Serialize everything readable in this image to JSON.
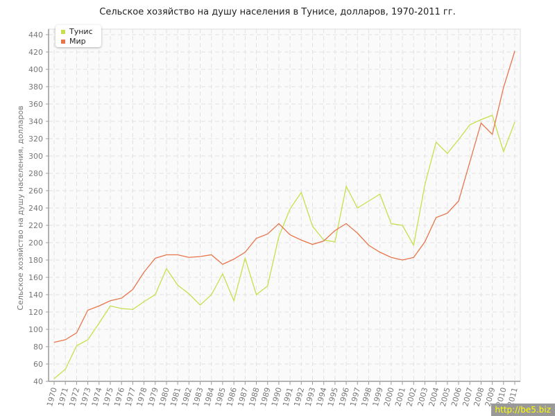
{
  "chart_data": {
    "type": "line",
    "title": "Сельское хозяйство на душу населения в Тунисе, долларов, 1970-2011 гг.",
    "xlabel": "",
    "ylabel": "Сельское хозяйство на душу населения, долларов",
    "ylim": [
      40,
      440
    ],
    "yticks": [
      40,
      60,
      80,
      100,
      120,
      140,
      160,
      180,
      200,
      220,
      240,
      260,
      280,
      300,
      320,
      340,
      360,
      380,
      400,
      420,
      440
    ],
    "x": [
      1970,
      1971,
      1972,
      1973,
      1974,
      1975,
      1976,
      1977,
      1978,
      1979,
      1980,
      1981,
      1982,
      1983,
      1984,
      1985,
      1986,
      1987,
      1988,
      1989,
      1990,
      1991,
      1992,
      1993,
      1994,
      1995,
      1996,
      1997,
      1998,
      1999,
      2000,
      2001,
      2002,
      2003,
      2004,
      2005,
      2006,
      2007,
      2008,
      2009,
      2010,
      2011
    ],
    "grid": true,
    "legend_position": "top-left",
    "series": [
      {
        "name": "Тунис",
        "color": "#c5e04c",
        "values": [
          43,
          54,
          81,
          88,
          107,
          127,
          124,
          123,
          132,
          140,
          170,
          151,
          141,
          128,
          140,
          164,
          133,
          182,
          140,
          150,
          207,
          239,
          258,
          219,
          203,
          201,
          265,
          240,
          248,
          256,
          222,
          220,
          197,
          267,
          316,
          303,
          319,
          336,
          342,
          347,
          305,
          339
        ]
      },
      {
        "name": "Мир",
        "color": "#e8744c",
        "values": [
          85,
          88,
          96,
          122,
          127,
          133,
          136,
          146,
          166,
          182,
          186,
          186,
          183,
          184,
          186,
          175,
          181,
          189,
          205,
          210,
          222,
          209,
          203,
          198,
          202,
          214,
          222,
          211,
          197,
          189,
          183,
          180,
          183,
          201,
          229,
          234,
          248,
          293,
          338,
          325,
          379,
          421
        ]
      }
    ]
  },
  "watermark": "http://be5.biz"
}
